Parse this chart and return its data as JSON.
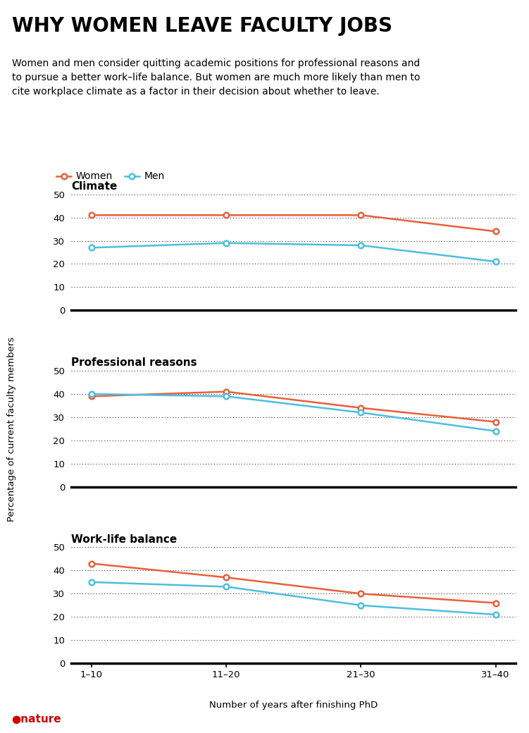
{
  "title": "WHY WOMEN LEAVE FACULTY JOBS",
  "subtitle": "Women and men consider quitting academic positions for professional reasons and\nto pursue a better work–life balance. But women are much more likely than men to\ncite workplace climate as a factor in their decision about whether to leave.",
  "x_labels": [
    "1–10",
    "11–20",
    "21–30",
    "31–40"
  ],
  "x_values": [
    0,
    1,
    2,
    3
  ],
  "ylabel": "Percentage of current faculty members",
  "xlabel": "Number of years after finishing PhD",
  "charts": [
    {
      "title": "Climate",
      "women": [
        41,
        41,
        41,
        34
      ],
      "men": [
        27,
        29,
        28,
        21
      ]
    },
    {
      "title": "Professional reasons",
      "women": [
        39,
        41,
        34,
        28
      ],
      "men": [
        40,
        39,
        32,
        24
      ]
    },
    {
      "title": "Work-life balance",
      "women": [
        43,
        37,
        30,
        26
      ],
      "men": [
        35,
        33,
        25,
        21
      ]
    }
  ],
  "women_color": "#E8603C",
  "men_color": "#4BBFDE",
  "ylim": [
    0,
    50
  ],
  "yticks": [
    0,
    10,
    20,
    30,
    40,
    50
  ],
  "background_color": "#ffffff",
  "nature_color": "#CC0000",
  "title_fontsize": 20,
  "subtitle_fontsize": 10,
  "legend_fontsize": 10,
  "axis_fontsize": 9.5,
  "chart_title_fontsize": 11
}
